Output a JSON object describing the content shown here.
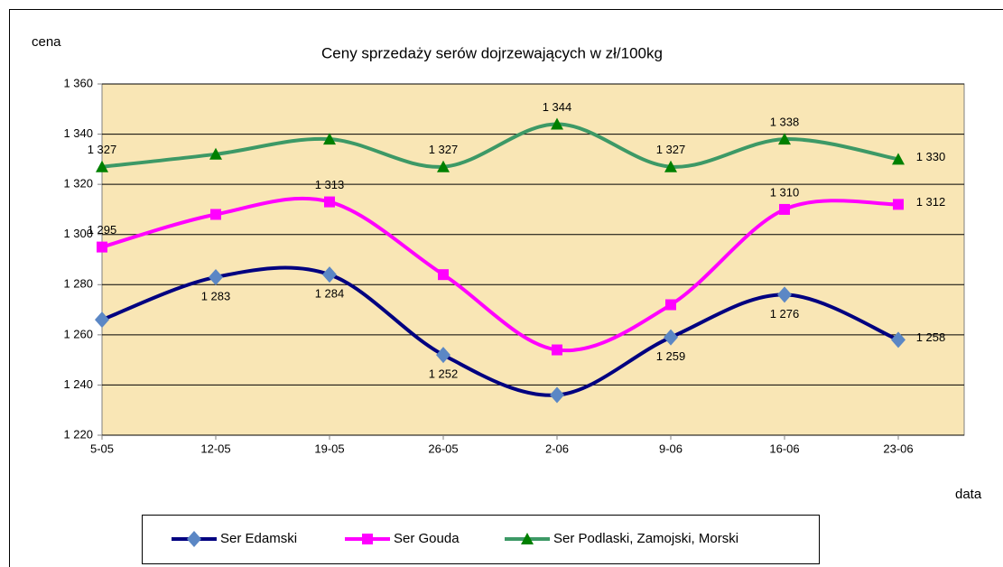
{
  "chart_data": {
    "type": "line",
    "title": "Ceny sprzedaży serów dojrzewających w zł/100kg",
    "y_label": "cena",
    "x_label": "data",
    "categories": [
      "5-05",
      "12-05",
      "19-05",
      "26-05",
      "2-06",
      "9-06",
      "16-06",
      "23-06"
    ],
    "series": [
      {
        "name": "Ser Edamski",
        "color": "#000080",
        "marker": "diamond",
        "marker_color": "#5b87c5",
        "values": [
          1266,
          1283,
          1284,
          1252,
          1236,
          1259,
          1276,
          1258
        ],
        "value_labels": [
          null,
          "1 283",
          "1 284",
          "1 252",
          null,
          "1 259",
          "1 276",
          "1 258"
        ]
      },
      {
        "name": "Ser Gouda",
        "color": "#ff00ff",
        "marker": "square",
        "marker_color": "#ff00ff",
        "values": [
          1295,
          1308,
          1313,
          1284,
          1254,
          1272,
          1310,
          1312
        ],
        "value_labels": [
          "1 295",
          null,
          "1 313",
          null,
          null,
          null,
          "1 310",
          "1 312"
        ]
      },
      {
        "name": "Ser Podlaski, Zamojski, Morski",
        "color": "#3d9966",
        "marker": "triangle",
        "marker_color": "#008000",
        "values": [
          1327,
          1332,
          1338,
          1327,
          1344,
          1327,
          1338,
          1330
        ],
        "value_labels": [
          "1 327",
          null,
          null,
          "1 327",
          "1 344",
          "1 327",
          "1 338",
          "1 330"
        ]
      }
    ],
    "ylim": [
      1220,
      1360
    ],
    "yticks": [
      {
        "value": 1220,
        "label": "1 220"
      },
      {
        "value": 1240,
        "label": "1 240"
      },
      {
        "value": 1260,
        "label": "1 260"
      },
      {
        "value": 1280,
        "label": "1 280"
      },
      {
        "value": 1300,
        "label": "1 300"
      },
      {
        "value": 1320,
        "label": "1 320"
      },
      {
        "value": 1340,
        "label": "1 340"
      },
      {
        "value": 1360,
        "label": "1 360"
      }
    ],
    "grid": true,
    "plot_background": "#f9e6b5",
    "legend": "bottom"
  }
}
